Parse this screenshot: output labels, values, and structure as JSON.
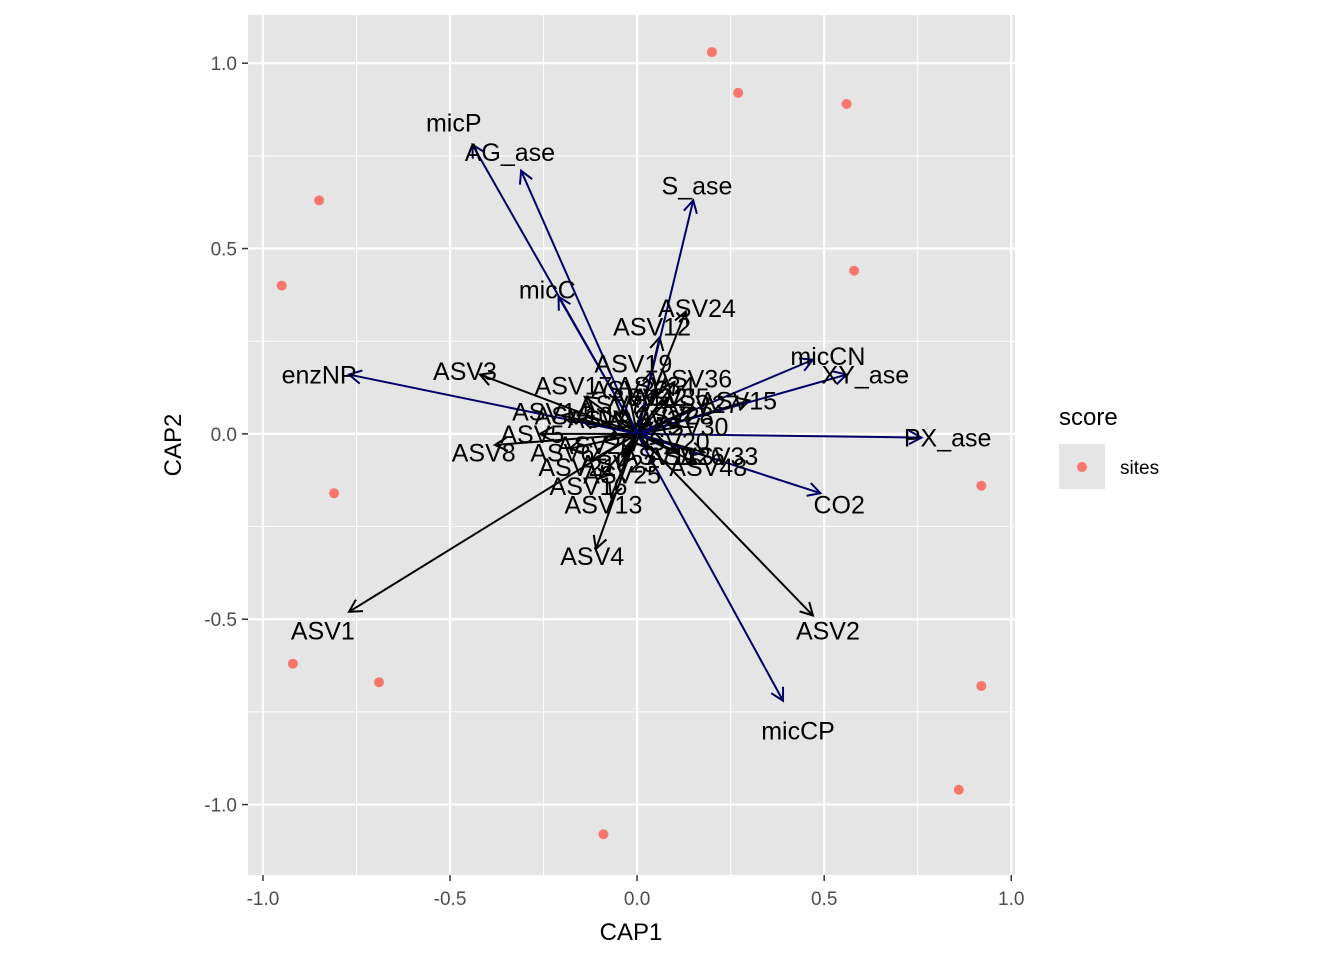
{
  "chart_data": {
    "type": "scatter",
    "xlabel": "CAP1",
    "ylabel": "CAP2",
    "xlim": [
      -1.04,
      1.01
    ],
    "ylim": [
      -1.19,
      1.13
    ],
    "xticks": [
      -1.0,
      -0.5,
      0.0,
      0.5,
      1.0
    ],
    "yticks": [
      -1.0,
      -0.5,
      0.0,
      0.5,
      1.0
    ],
    "xtick_labels": [
      "-1.0",
      "-0.5",
      "0.0",
      "0.5",
      "1.0"
    ],
    "ytick_labels": [
      "-1.0",
      "-0.5",
      "0.0",
      "0.5",
      "1.0"
    ],
    "grid": true,
    "aspect": "equal",
    "colors": {
      "panel": "#e5e5e5",
      "grid": "#ffffff",
      "sites": "#f8766d",
      "env_arrows": "#000066",
      "species_arrows": "#000000"
    },
    "legend": {
      "title": "score",
      "position": "right",
      "entries": [
        {
          "label": "sites",
          "color": "#f8766d"
        }
      ]
    },
    "series": [
      {
        "name": "sites",
        "kind": "points",
        "points": [
          [
            0.2,
            1.03
          ],
          [
            0.27,
            0.92
          ],
          [
            0.56,
            0.89
          ],
          [
            -0.85,
            0.63
          ],
          [
            -0.95,
            0.4
          ],
          [
            0.58,
            0.44
          ],
          [
            -0.81,
            -0.16
          ],
          [
            0.92,
            -0.14
          ],
          [
            -0.92,
            -0.62
          ],
          [
            -0.69,
            -0.67
          ],
          [
            0.92,
            -0.68
          ],
          [
            0.86,
            -0.96
          ],
          [
            -0.09,
            -1.08
          ]
        ]
      }
    ],
    "env_vectors": [
      {
        "label": "micP",
        "x": -0.44,
        "y": 0.78,
        "lx": -0.49,
        "ly": 0.84
      },
      {
        "label": "AG_ase",
        "x": -0.31,
        "y": 0.71,
        "lx": -0.34,
        "ly": 0.76
      },
      {
        "label": "S_ase",
        "x": 0.15,
        "y": 0.63,
        "lx": 0.16,
        "ly": 0.67
      },
      {
        "label": "micC",
        "x": -0.21,
        "y": 0.37,
        "lx": -0.24,
        "ly": 0.39
      },
      {
        "label": "micCN",
        "x": 0.47,
        "y": 0.2,
        "lx": 0.51,
        "ly": 0.21
      },
      {
        "label": "XY_ase",
        "x": 0.56,
        "y": 0.16,
        "lx": 0.61,
        "ly": 0.16
      },
      {
        "label": "enzNP",
        "x": -0.77,
        "y": 0.16,
        "lx": -0.85,
        "ly": 0.16
      },
      {
        "label": "PX_ase",
        "x": 0.76,
        "y": -0.01,
        "lx": 0.83,
        "ly": -0.01
      },
      {
        "label": "CO2",
        "x": 0.49,
        "y": -0.16,
        "lx": 0.54,
        "ly": -0.19
      },
      {
        "label": "micCP",
        "x": 0.39,
        "y": -0.72,
        "lx": 0.43,
        "ly": -0.8
      }
    ],
    "species_vectors": [
      {
        "label": "ASV24",
        "x": 0.13,
        "y": 0.33,
        "lx": 0.16,
        "ly": 0.34
      },
      {
        "label": "ASV12",
        "x": 0.06,
        "y": 0.26,
        "lx": 0.04,
        "ly": 0.29
      },
      {
        "label": "ASV19",
        "x": 0.04,
        "y": 0.17,
        "lx": -0.01,
        "ly": 0.19
      },
      {
        "label": "ASV36",
        "x": 0.1,
        "y": 0.14,
        "lx": 0.15,
        "ly": 0.15
      },
      {
        "label": "ASV15",
        "x": 0.3,
        "y": 0.09,
        "lx": 0.27,
        "ly": 0.09
      },
      {
        "label": "ASV3",
        "x": -0.42,
        "y": 0.16,
        "lx": -0.46,
        "ly": 0.17
      },
      {
        "label": "ASV1",
        "x": -0.77,
        "y": -0.48,
        "lx": -0.84,
        "ly": -0.53
      },
      {
        "label": "ASV2",
        "x": 0.47,
        "y": -0.49,
        "lx": 0.51,
        "ly": -0.53
      },
      {
        "label": "ASV4",
        "x": -0.11,
        "y": -0.31,
        "lx": -0.12,
        "ly": -0.33
      },
      {
        "label": "ASV8",
        "x": -0.38,
        "y": -0.03,
        "lx": -0.41,
        "ly": -0.05
      },
      {
        "label": "ASV13",
        "x": -0.07,
        "y": -0.17,
        "lx": -0.09,
        "ly": -0.19
      },
      {
        "label": "ASV33",
        "x": 0.18,
        "y": -0.05,
        "lx": 0.22,
        "ly": -0.06
      },
      {
        "label": "ASV48",
        "x": 0.16,
        "y": -0.08,
        "lx": 0.19,
        "ly": -0.09
      },
      {
        "label": "ASV16",
        "x": -0.1,
        "y": -0.12,
        "lx": -0.13,
        "ly": -0.14
      },
      {
        "label": "ASV25",
        "x": -0.05,
        "y": -0.09,
        "lx": -0.04,
        "ly": -0.11
      },
      {
        "label": "ASV5",
        "x": -0.26,
        "y": 0.0,
        "lx": -0.28,
        "ly": 0.0
      },
      {
        "label": "ASV14",
        "x": -0.2,
        "y": 0.05,
        "lx": -0.23,
        "ly": 0.06
      },
      {
        "label": "ASV17",
        "x": -0.14,
        "y": 0.1,
        "lx": -0.17,
        "ly": 0.13
      },
      {
        "label": "ASV21",
        "x": -0.12,
        "y": -0.07,
        "lx": -0.16,
        "ly": -0.09
      },
      {
        "label": "ASV28",
        "x": 0.09,
        "y": 0.04,
        "lx": 0.1,
        "ly": 0.05
      },
      {
        "label": "ASV34",
        "x": 0.05,
        "y": 0.12,
        "lx": 0.05,
        "ly": 0.13
      },
      {
        "label": "ASV27",
        "x": 0.15,
        "y": 0.07,
        "lx": 0.17,
        "ly": 0.08
      },
      {
        "label": "ASV9",
        "x": -0.08,
        "y": 0.03,
        "lx": -0.1,
        "ly": 0.04
      },
      {
        "label": "ASV11",
        "x": 0.03,
        "y": -0.04,
        "lx": 0.06,
        "ly": -0.06
      },
      {
        "label": "ASV6",
        "x": -0.18,
        "y": -0.04,
        "lx": -0.2,
        "ly": -0.05
      },
      {
        "label": "ASV7",
        "x": -0.06,
        "y": 0.06,
        "lx": -0.07,
        "ly": 0.08
      },
      {
        "label": "ASV20",
        "x": 0.07,
        "y": -0.02,
        "lx": 0.09,
        "ly": -0.02
      },
      {
        "label": "ASV30",
        "x": 0.12,
        "y": 0.02,
        "lx": 0.14,
        "ly": 0.02
      },
      {
        "label": "ASV10",
        "x": -0.15,
        "y": 0.04,
        "lx": -0.17,
        "ly": 0.05
      },
      {
        "label": "ASV22",
        "x": 0.02,
        "y": 0.08,
        "lx": 0.03,
        "ly": 0.1
      },
      {
        "label": "ASV23",
        "x": -0.04,
        "y": -0.06,
        "lx": -0.05,
        "ly": -0.08
      },
      {
        "label": "ASV26",
        "x": 0.11,
        "y": -0.05,
        "lx": 0.13,
        "ly": -0.06
      },
      {
        "label": "ASV29",
        "x": -0.09,
        "y": -0.02,
        "lx": -0.11,
        "ly": -0.03
      },
      {
        "label": "ASV31",
        "x": 0.04,
        "y": 0.03,
        "lx": 0.05,
        "ly": 0.04
      },
      {
        "label": "ASV32",
        "x": -0.02,
        "y": 0.1,
        "lx": -0.02,
        "ly": 0.12
      },
      {
        "label": "ASV35",
        "x": 0.08,
        "y": 0.09,
        "lx": 0.09,
        "ly": 0.1
      }
    ]
  }
}
